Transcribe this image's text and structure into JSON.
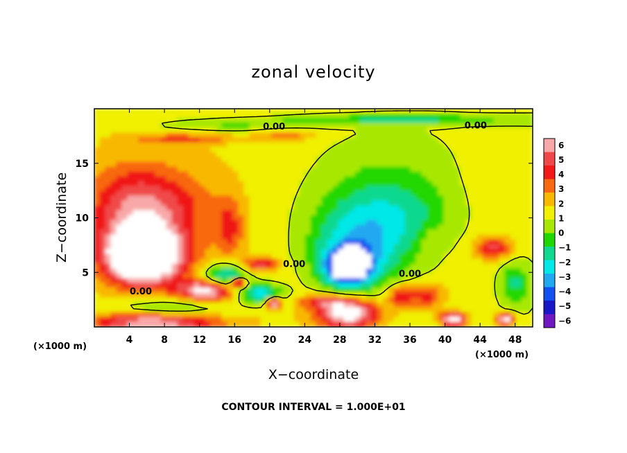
{
  "chart_data": {
    "type": "heatmap",
    "title": "zonal velocity",
    "xlabel": "X−coordinate",
    "ylabel": "Z−coordinate",
    "x_unit": "(×1000 m)",
    "y_unit": "(×1000 m)",
    "xlim": [
      0,
      50
    ],
    "ylim": [
      0,
      20
    ],
    "x_ticks": [
      4,
      8,
      12,
      16,
      20,
      24,
      28,
      32,
      36,
      40,
      44,
      48
    ],
    "y_ticks": [
      5,
      10,
      15
    ],
    "colorbar": {
      "ticks": [
        6,
        5,
        4,
        3,
        2,
        1,
        0,
        -1,
        -2,
        -3,
        -4,
        -5,
        -6
      ],
      "tick_labels": [
        "6",
        "5",
        "4",
        "3",
        "2",
        "1",
        "0",
        "−1",
        "−2",
        "−3",
        "−4",
        "−5",
        "−6"
      ],
      "colors": [
        "#f8a8a8",
        "#f04848",
        "#f01818",
        "#f86810",
        "#f8b800",
        "#f0f000",
        "#a8e800",
        "#20d800",
        "#10d890",
        "#00e8e8",
        "#20a8f0",
        "#1050f0",
        "#1818c8",
        "#7018c0"
      ]
    },
    "contour_labels": [
      {
        "text": "0.00",
        "x": 20.5,
        "z": 18.1
      },
      {
        "text": "0.00",
        "x": 43.5,
        "z": 18.2
      },
      {
        "text": "0.00",
        "x": 22.8,
        "z": 5.5
      },
      {
        "text": "0.00",
        "x": 36.0,
        "z": 4.6
      },
      {
        "text": "0.00",
        "x": 5.3,
        "z": 3.0
      }
    ],
    "features": [
      {
        "x": 5.5,
        "z": 6.5,
        "value": 8,
        "rx": 3.2,
        "rz": 1.8
      },
      {
        "x": 6.0,
        "z": 6.5,
        "value": 5,
        "rx": 4.8,
        "rz": 3.0
      },
      {
        "x": 7.0,
        "z": 11.0,
        "value": 2.8,
        "rx": 6.5,
        "rz": 3.5
      },
      {
        "x": 4.0,
        "z": 10.0,
        "value": 2.2,
        "rx": 5.0,
        "rz": 5.0
      },
      {
        "x": 15.5,
        "z": 9.0,
        "value": 2.5,
        "rx": 1.5,
        "rz": 2.5
      },
      {
        "x": 13.0,
        "z": 3.3,
        "value": 6.5,
        "rx": 3.2,
        "rz": 0.9
      },
      {
        "x": 19.0,
        "z": 5.7,
        "value": 4,
        "rx": 2.0,
        "rz": 0.6
      },
      {
        "x": 15.0,
        "z": 4.5,
        "value": -4.5,
        "rx": 2.5,
        "rz": 1.3
      },
      {
        "x": 19.0,
        "z": 3.0,
        "value": -4.5,
        "rx": 2.5,
        "rz": 0.9
      },
      {
        "x": 16.5,
        "z": 4.0,
        "value": 7,
        "rx": 0.8,
        "rz": 0.4
      },
      {
        "x": 20.5,
        "z": 2.2,
        "value": 7,
        "rx": 0.8,
        "rz": 0.5
      },
      {
        "x": 8.0,
        "z": 1.3,
        "value": -3.5,
        "rx": 6.5,
        "rz": 1.2
      },
      {
        "x": 7.0,
        "z": 0.5,
        "value": 7,
        "rx": 7.0,
        "rz": 0.9
      },
      {
        "x": 29.0,
        "z": 5.5,
        "value": -8,
        "rx": 2.4,
        "rz": 1.6
      },
      {
        "x": 30.0,
        "z": 6.5,
        "value": -4,
        "rx": 5.5,
        "rz": 3.2
      },
      {
        "x": 33.0,
        "z": 10.0,
        "value": -2.6,
        "rx": 7.5,
        "rz": 3.0
      },
      {
        "x": 33.0,
        "z": 13.5,
        "value": -1.4,
        "rx": 9.0,
        "rz": 4.5
      },
      {
        "x": 29.0,
        "z": 1.2,
        "value": 7,
        "rx": 3.5,
        "rz": 1.2
      },
      {
        "x": 26.5,
        "z": 2.3,
        "value": 3.5,
        "rx": 3.0,
        "rz": 0.6
      },
      {
        "x": 35.0,
        "z": 2.8,
        "value": 3.5,
        "rx": 1.5,
        "rz": 1.0
      },
      {
        "x": 38.0,
        "z": 2.8,
        "value": 3,
        "rx": 2.0,
        "rz": 1.2
      },
      {
        "x": 41.0,
        "z": 0.7,
        "value": 7,
        "rx": 1.4,
        "rz": 0.6
      },
      {
        "x": 47.0,
        "z": 0.7,
        "value": 7,
        "rx": 1.0,
        "rz": 0.5
      },
      {
        "x": 45.5,
        "z": 7.2,
        "value": 4,
        "rx": 2.0,
        "rz": 1.0
      },
      {
        "x": 48.0,
        "z": 4.0,
        "value": -2.5,
        "rx": 1.6,
        "rz": 2.0
      },
      {
        "x": 35.0,
        "z": 19.0,
        "value": -2.5,
        "rx": 14.0,
        "rz": 0.5
      },
      {
        "x": 15.0,
        "z": 18.5,
        "value": -1.8,
        "rx": 9.0,
        "rz": 0.6
      },
      {
        "x": 10.0,
        "z": 17.2,
        "value": 2.6,
        "rx": 5.0,
        "rz": 0.4
      },
      {
        "x": 22.0,
        "z": 17.5,
        "value": 2.0,
        "rx": 3.0,
        "rz": 0.5
      },
      {
        "x": 45.0,
        "z": 12.0,
        "value": 0.6,
        "rx": 5.0,
        "rz": 6.0
      },
      {
        "x": 38.5,
        "z": 8.0,
        "value": 0.8,
        "rx": 1.2,
        "rz": 1.2
      }
    ],
    "grid": false,
    "legend": "right",
    "note": "CONTOUR INTERVAL = 1.000E+01"
  }
}
